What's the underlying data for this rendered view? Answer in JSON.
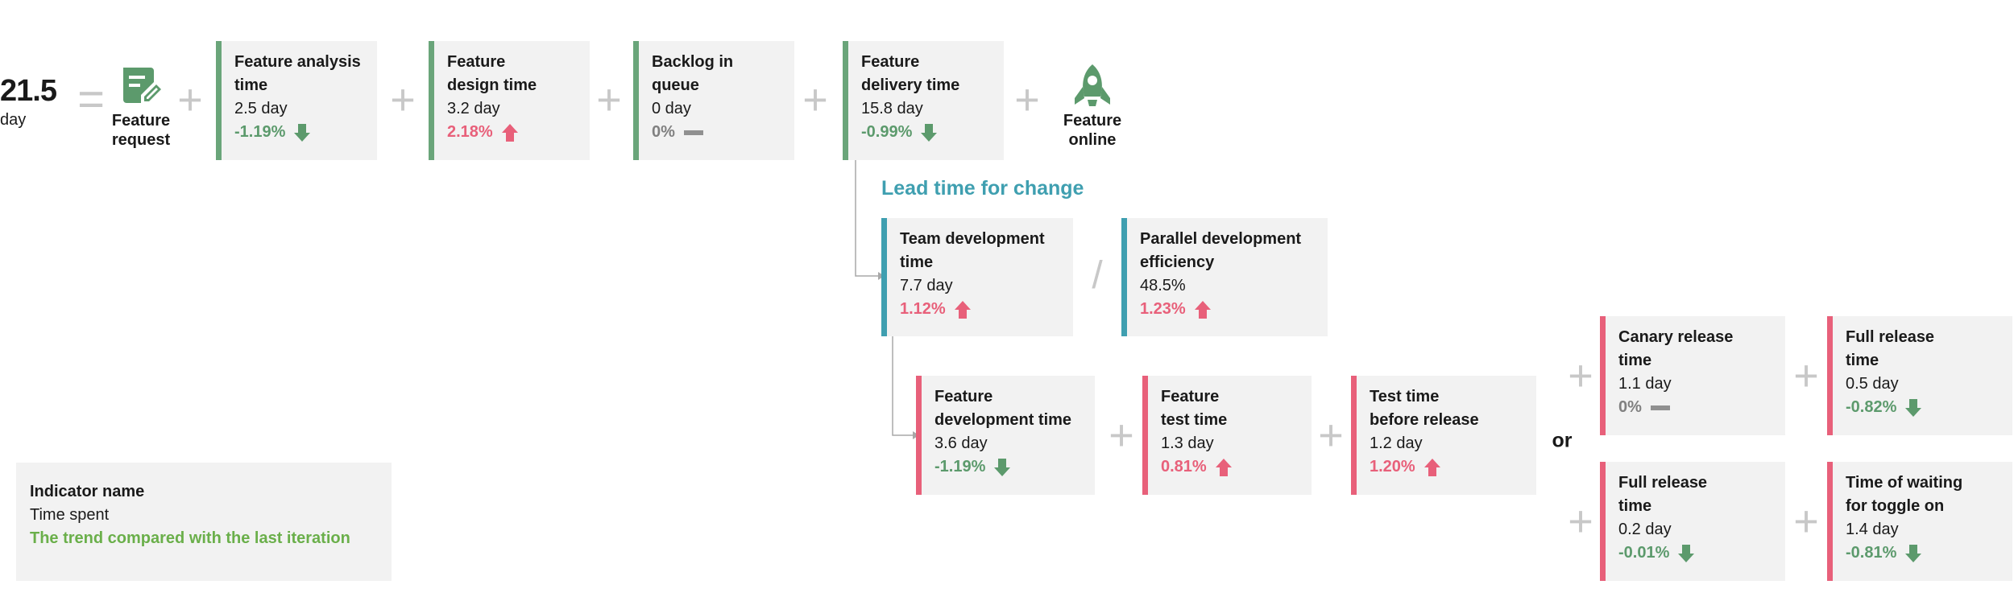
{
  "total": {
    "value": "21.5",
    "unit": "day"
  },
  "operators": {
    "equals": "=",
    "plus": "+",
    "divide": "/",
    "or": "or"
  },
  "icons": {
    "request": {
      "name": "edit-document-icon",
      "label": "Feature\nrequest",
      "color": "#5c9a6c"
    },
    "online": {
      "name": "rocket-icon",
      "label": "Feature\nonline",
      "color": "#5c9a6c"
    }
  },
  "section_title": "Lead time for change",
  "boxes": {
    "analysis": {
      "title": "Feature analysis\ntime",
      "value": "2.5 day",
      "trend": "-1.19%",
      "direction": "down"
    },
    "design": {
      "title": "Feature\ndesign time",
      "value": "3.2 day",
      "trend": "2.18%",
      "direction": "up"
    },
    "backlog": {
      "title": "Backlog in\nqueue",
      "value": "0 day",
      "trend": "0%",
      "direction": "flat"
    },
    "delivery": {
      "title": "Feature\ndelivery time",
      "value": "15.8 day",
      "trend": "-0.99%",
      "direction": "down"
    },
    "team_dev": {
      "title": "Team development\ntime",
      "value": "7.7 day",
      "trend": "1.12%",
      "direction": "up"
    },
    "parallel": {
      "title": "Parallel development\nefficiency",
      "value": "48.5%",
      "trend": "1.23%",
      "direction": "up"
    },
    "feat_dev": {
      "title": "Feature\ndevelopment time",
      "value": "3.6 day",
      "trend": "-1.19%",
      "direction": "down"
    },
    "feat_test": {
      "title": "Feature\ntest time",
      "value": "1.3 day",
      "trend": "0.81%",
      "direction": "up"
    },
    "test_before": {
      "title": "Test time\nbefore release",
      "value": "1.2 day",
      "trend": "1.20%",
      "direction": "up"
    },
    "canary": {
      "title": "Canary release\ntime",
      "value": "1.1 day",
      "trend": "0%",
      "direction": "flat"
    },
    "full_a": {
      "title": "Full release\ntime",
      "value": "0.5 day",
      "trend": "-0.82%",
      "direction": "down"
    },
    "full_b": {
      "title": "Full release\ntime",
      "value": "0.2 day",
      "trend": "-0.01%",
      "direction": "down"
    },
    "toggle": {
      "title": "Time of waiting\nfor toggle on",
      "value": "1.4 day",
      "trend": "-0.81%",
      "direction": "down"
    }
  },
  "legend": {
    "title": "Indicator name",
    "line": "Time spent",
    "trend": "The trend compared with the last iteration"
  },
  "colors": {
    "green": "#6aa57a",
    "teal": "#3f9fb0",
    "red": "#e8607a",
    "trend_down": "#5c9a6c",
    "trend_up": "#e8607a",
    "trend_flat": "#808080",
    "operator": "#c8c8c8",
    "legend_trend": "#6aaf4a"
  }
}
